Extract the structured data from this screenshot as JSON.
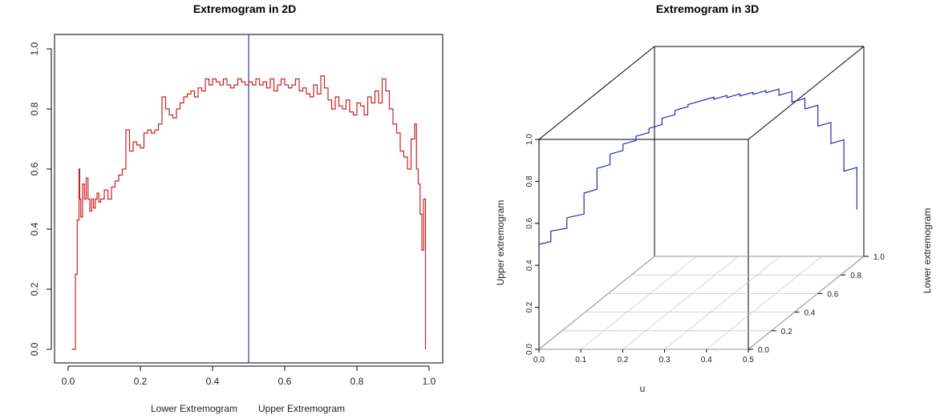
{
  "chart_data": [
    {
      "type": "line",
      "title": "Extremogram in 2D",
      "xlabel_left": "Lower Extremogram",
      "xlabel_right": "Upper Extremogram",
      "ylabel": "",
      "xlim": [
        0.0,
        1.0
      ],
      "ylim": [
        0.0,
        1.0
      ],
      "x_ticks": [
        "0.0",
        "0.2",
        "0.4",
        "0.6",
        "0.8",
        "1.0"
      ],
      "y_ticks": [
        "0.0",
        "0.2",
        "0.4",
        "0.6",
        "0.8",
        "1.0"
      ],
      "divider_x": 0.5,
      "series": [
        {
          "color": "#cc2222",
          "step": true,
          "x": [
            0.01,
            0.02,
            0.025,
            0.03,
            0.032,
            0.035,
            0.04,
            0.045,
            0.05,
            0.055,
            0.06,
            0.065,
            0.07,
            0.075,
            0.08,
            0.085,
            0.09,
            0.1,
            0.11,
            0.12,
            0.13,
            0.14,
            0.15,
            0.16,
            0.17,
            0.18,
            0.19,
            0.2,
            0.21,
            0.22,
            0.23,
            0.24,
            0.25,
            0.26,
            0.27,
            0.28,
            0.29,
            0.3,
            0.31,
            0.32,
            0.33,
            0.34,
            0.35,
            0.36,
            0.37,
            0.38,
            0.39,
            0.4,
            0.41,
            0.42,
            0.43,
            0.44,
            0.45,
            0.46,
            0.47,
            0.48,
            0.49,
            0.5,
            0.51,
            0.52,
            0.53,
            0.54,
            0.55,
            0.56,
            0.57,
            0.58,
            0.59,
            0.6,
            0.61,
            0.62,
            0.63,
            0.64,
            0.65,
            0.66,
            0.67,
            0.68,
            0.69,
            0.7,
            0.71,
            0.72,
            0.73,
            0.74,
            0.75,
            0.76,
            0.77,
            0.78,
            0.79,
            0.8,
            0.81,
            0.82,
            0.83,
            0.84,
            0.85,
            0.86,
            0.87,
            0.88,
            0.89,
            0.9,
            0.91,
            0.92,
            0.93,
            0.94,
            0.95,
            0.96,
            0.965,
            0.97,
            0.975,
            0.98,
            0.985,
            0.99
          ],
          "y": [
            0.0,
            0.25,
            0.43,
            0.6,
            0.5,
            0.44,
            0.55,
            0.5,
            0.57,
            0.5,
            0.46,
            0.5,
            0.47,
            0.5,
            0.52,
            0.49,
            0.5,
            0.53,
            0.5,
            0.54,
            0.56,
            0.58,
            0.6,
            0.73,
            0.66,
            0.69,
            0.68,
            0.67,
            0.72,
            0.73,
            0.72,
            0.73,
            0.75,
            0.84,
            0.8,
            0.78,
            0.77,
            0.8,
            0.82,
            0.84,
            0.85,
            0.86,
            0.84,
            0.87,
            0.86,
            0.9,
            0.88,
            0.9,
            0.89,
            0.88,
            0.9,
            0.88,
            0.87,
            0.88,
            0.9,
            0.89,
            0.88,
            0.89,
            0.88,
            0.9,
            0.88,
            0.89,
            0.87,
            0.9,
            0.86,
            0.88,
            0.9,
            0.88,
            0.87,
            0.88,
            0.9,
            0.86,
            0.87,
            0.85,
            0.84,
            0.88,
            0.85,
            0.91,
            0.87,
            0.83,
            0.8,
            0.84,
            0.81,
            0.8,
            0.83,
            0.79,
            0.78,
            0.82,
            0.81,
            0.78,
            0.84,
            0.82,
            0.86,
            0.82,
            0.9,
            0.86,
            0.8,
            0.75,
            0.72,
            0.66,
            0.64,
            0.6,
            0.7,
            0.75,
            0.6,
            0.55,
            0.45,
            0.33,
            0.5,
            0.0
          ]
        }
      ]
    },
    {
      "type": "line",
      "title": "Extremogram in 3D",
      "xlabel": "u",
      "ylabel": "Upper extremogram",
      "zlabel": "Lower extremogram",
      "xlim": [
        0.0,
        0.5
      ],
      "ylim": [
        0.0,
        1.0
      ],
      "zlim": [
        0.0,
        1.0
      ],
      "x_ticks": [
        "0.0",
        "0.1",
        "0.2",
        "0.3",
        "0.4",
        "0.5"
      ],
      "y_ticks": [
        "0.0",
        "0.2",
        "0.4",
        "0.6",
        "0.8",
        "1.0"
      ],
      "z_ticks": [
        "0.0",
        "0.2",
        "0.4",
        "0.6",
        "0.8",
        "1.0"
      ],
      "series": [
        {
          "color": "#2a2ab8",
          "step": true,
          "x": [
            0.0,
            0.02,
            0.05,
            0.08,
            0.1,
            0.12,
            0.14,
            0.16,
            0.18,
            0.2,
            0.22,
            0.24,
            0.26,
            0.28,
            0.3,
            0.32,
            0.34,
            0.36,
            0.38,
            0.4,
            0.42,
            0.44,
            0.46,
            0.48,
            0.5
          ],
          "y": [
            0.5,
            0.55,
            0.6,
            0.7,
            0.8,
            0.85,
            0.88,
            0.9,
            0.92,
            0.95,
            0.97,
            0.98,
            0.98,
            0.97,
            0.96,
            0.95,
            0.94,
            0.93,
            0.9,
            0.85,
            0.8,
            0.7,
            0.6,
            0.45,
            0.25
          ],
          "z": [
            0.0,
            0.03,
            0.06,
            0.1,
            0.14,
            0.18,
            0.22,
            0.26,
            0.3,
            0.34,
            0.38,
            0.42,
            0.46,
            0.5,
            0.54,
            0.58,
            0.62,
            0.66,
            0.7,
            0.74,
            0.78,
            0.82,
            0.86,
            0.9,
            0.94
          ]
        }
      ]
    }
  ]
}
